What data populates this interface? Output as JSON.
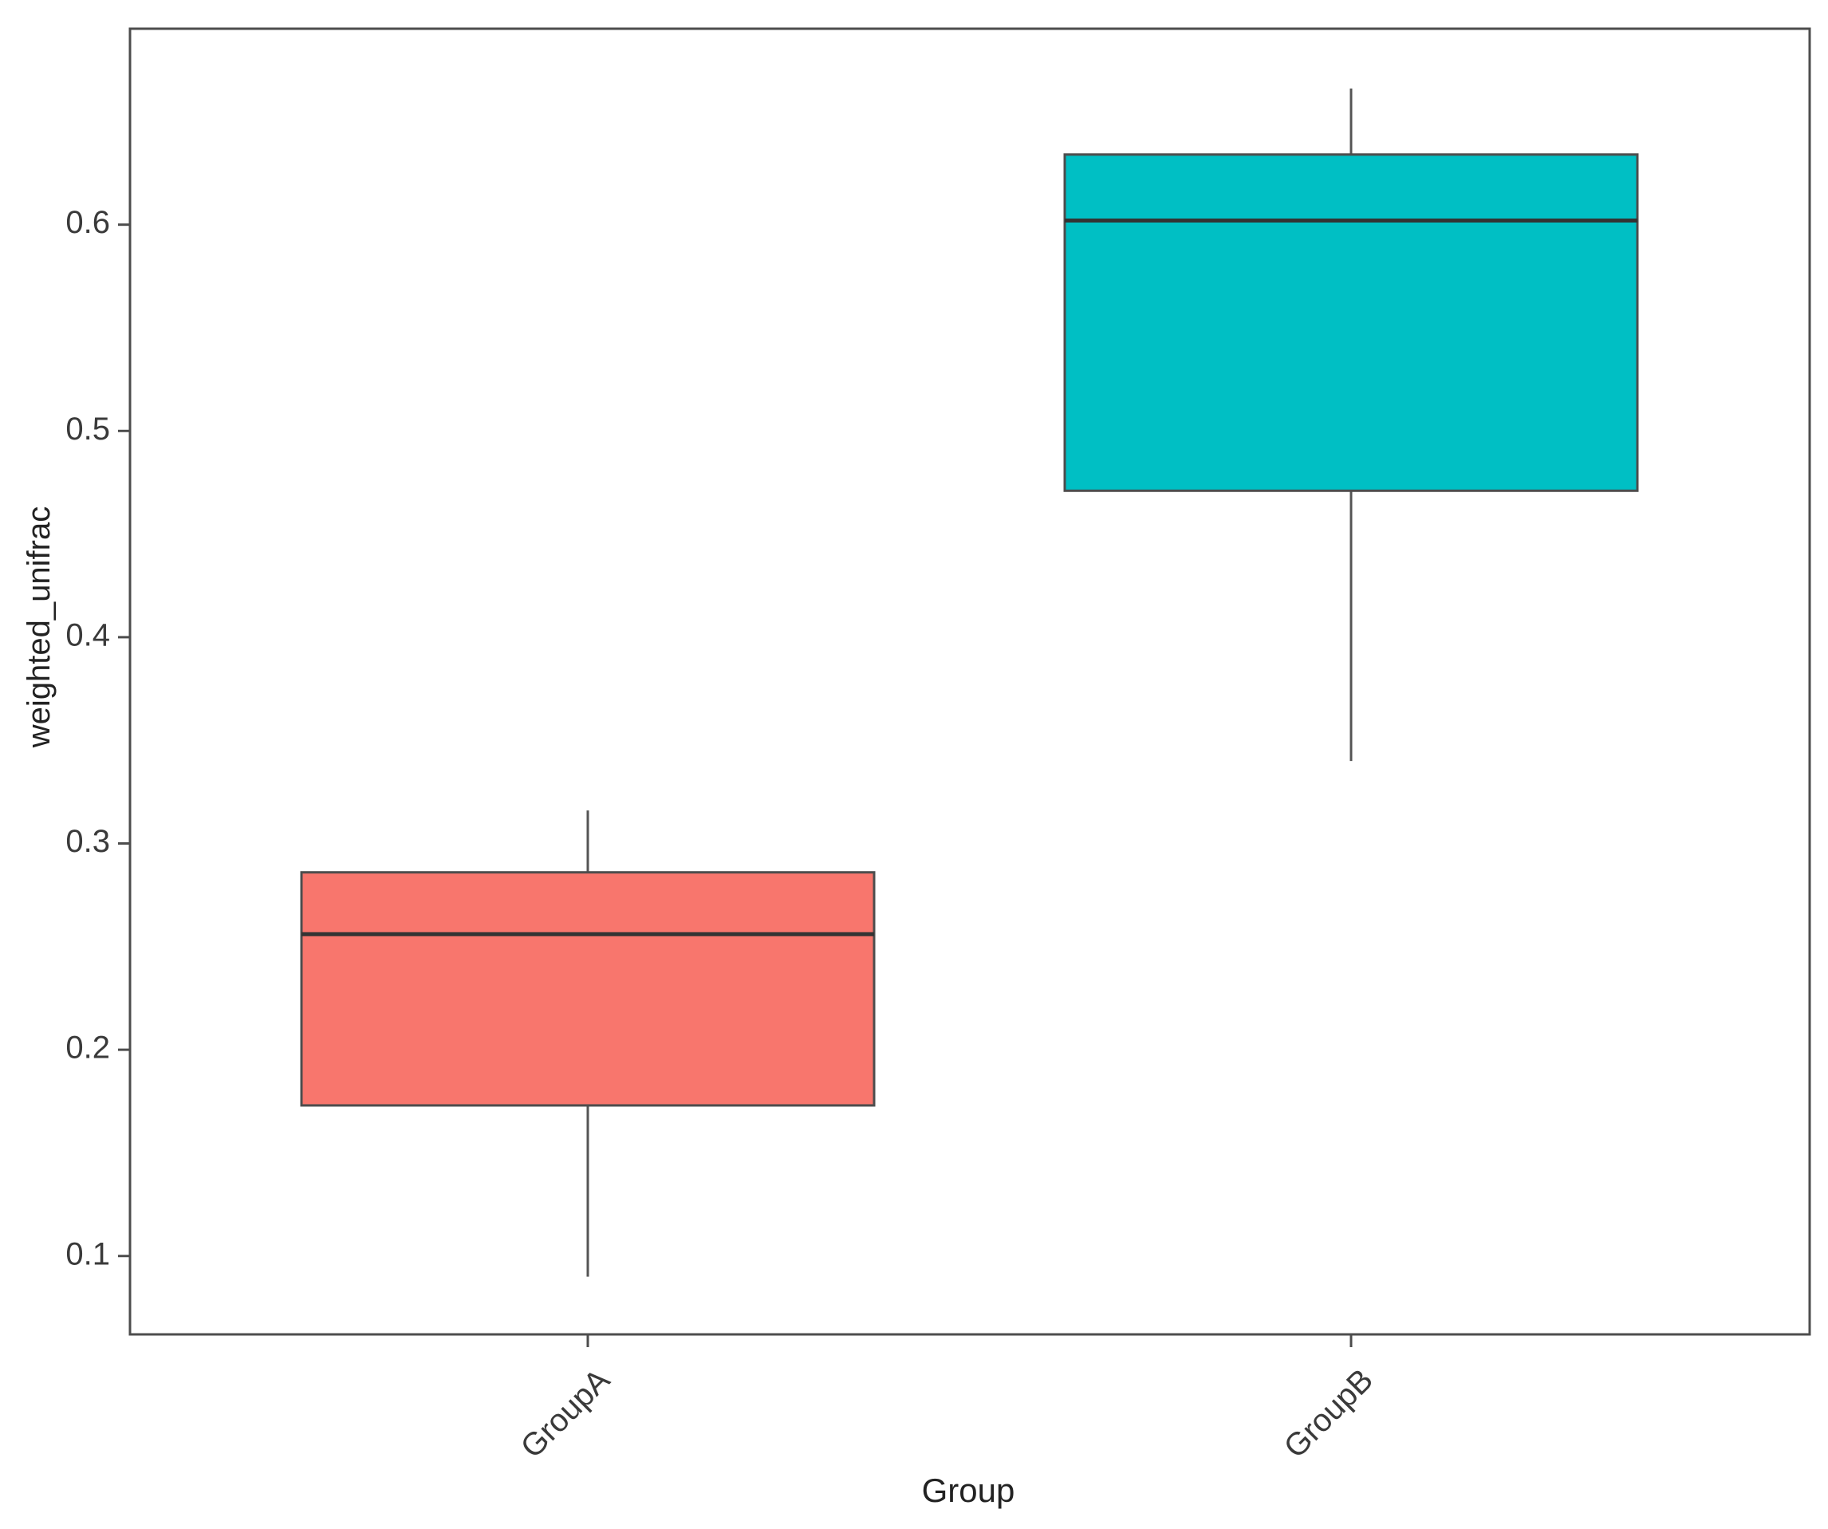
{
  "chart_data": {
    "type": "box",
    "title": "",
    "xlabel": "Group",
    "ylabel": "weighted_unifrac",
    "ylim": [
      0.062,
      0.695
    ],
    "yticks": [
      0.1,
      0.2,
      0.3,
      0.4,
      0.5,
      0.6
    ],
    "ytick_labels": [
      "0.1",
      "0.2",
      "0.3",
      "0.4",
      "0.5",
      "0.6"
    ],
    "categories": [
      "GroupA",
      "GroupB"
    ],
    "boxes": [
      {
        "category": "GroupA",
        "min": 0.09,
        "q1": 0.173,
        "median": 0.256,
        "q3": 0.286,
        "max": 0.316,
        "color": "#F8766D"
      },
      {
        "category": "GroupB",
        "min": 0.34,
        "q1": 0.471,
        "median": 0.602,
        "q3": 0.634,
        "max": 0.666,
        "color": "#00BFC4"
      }
    ],
    "grid": false,
    "legend": "none",
    "x_tick_rotation": "45 degrees",
    "colors": {
      "panel_border": "#4d4d4d",
      "box_outline": "#4d4d4d",
      "median_line": "#333333",
      "whisker": "#555555"
    }
  }
}
